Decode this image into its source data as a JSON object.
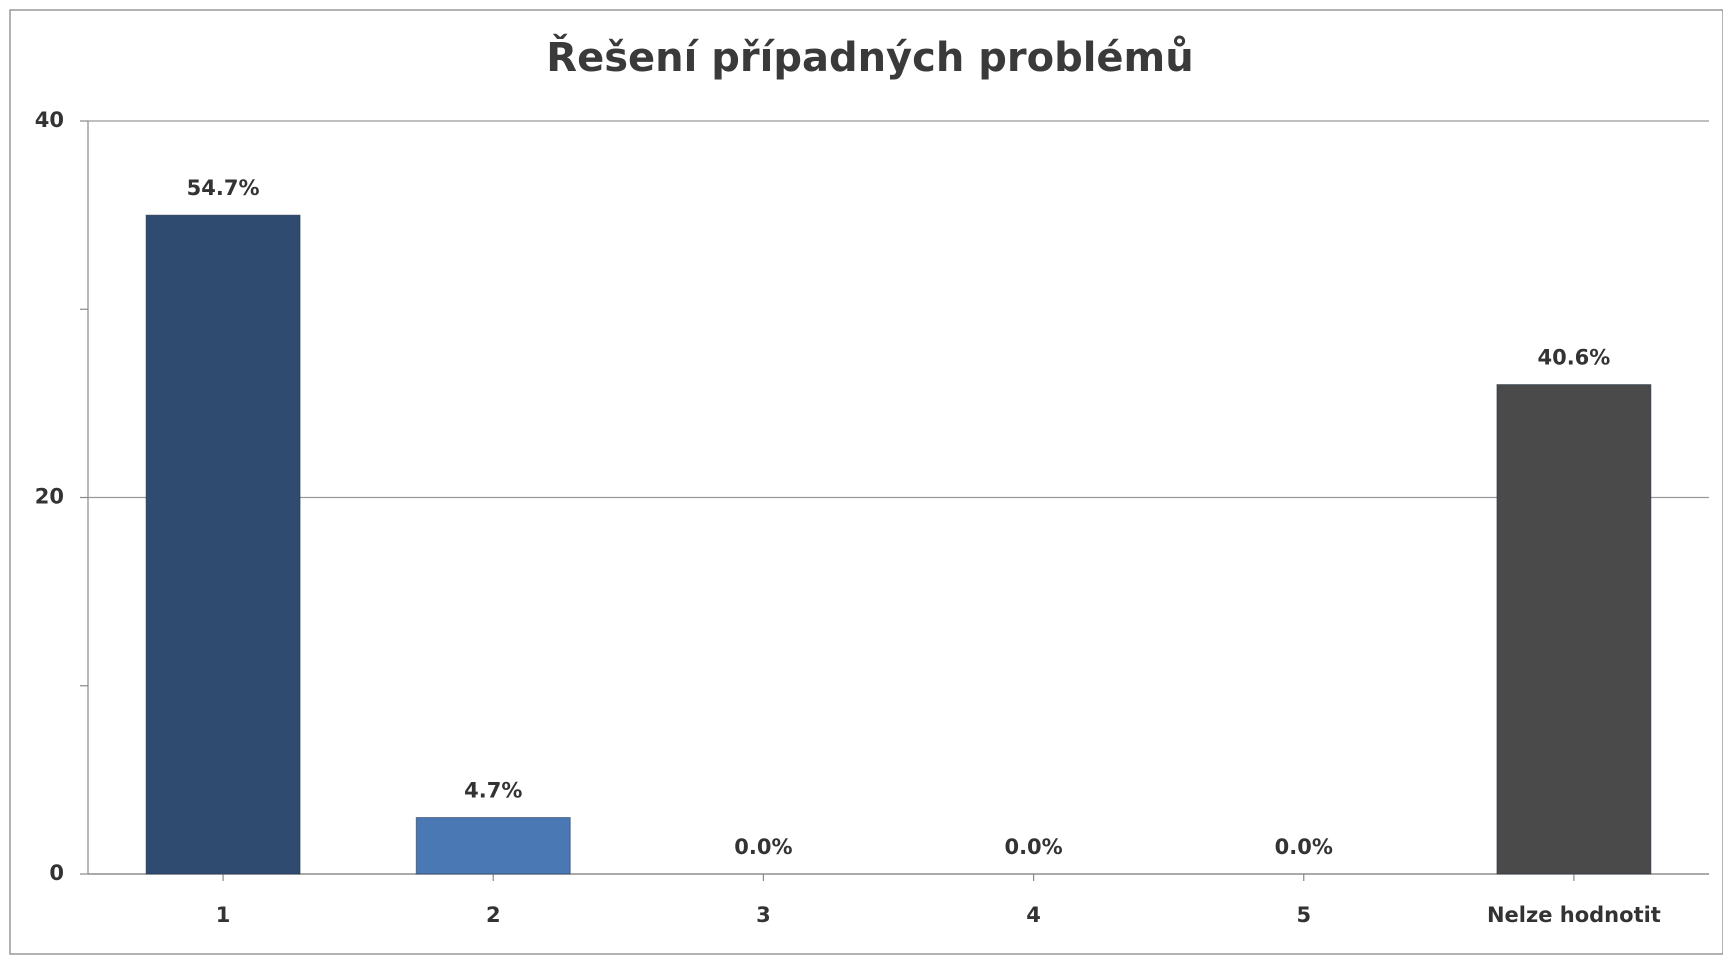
{
  "chart_data": {
    "type": "bar",
    "title": "Řešení případných problémů",
    "categories": [
      "1",
      "2",
      "3",
      "4",
      "5",
      "Nelze hodnotit"
    ],
    "values": [
      35,
      3,
      0,
      0,
      0,
      26
    ],
    "value_labels": [
      "54.7%",
      "4.7%",
      "0.0%",
      "0.0%",
      "0.0%",
      "40.6%"
    ],
    "colors": [
      "#2f4b70",
      "#4a78b4",
      "#4a78b4",
      "#4a78b4",
      "#4a78b4",
      "#4a4a4a"
    ],
    "ylim": [
      0,
      40
    ],
    "yticks": [
      0,
      20,
      40
    ],
    "yminorticks": [
      10,
      30
    ],
    "grid": true
  }
}
